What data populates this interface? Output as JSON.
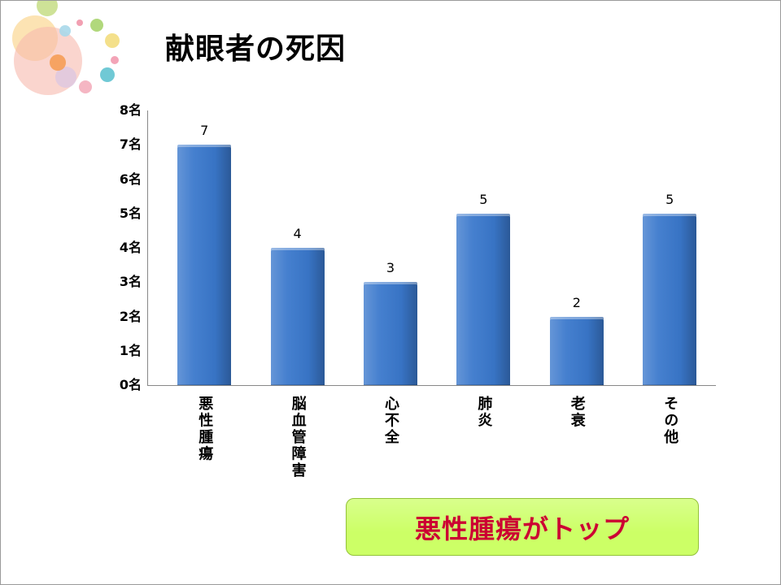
{
  "slide": {
    "title": "献眼者の死因",
    "callout": "悪性腫瘍がトップ"
  },
  "colors": {
    "bar": "#3a78cc",
    "callout_text": "#cc0033",
    "callout_background": "#ccff66"
  },
  "chart_data": {
    "type": "bar",
    "categories": [
      "悪性腫瘍",
      "脳血管障害",
      "心不全",
      "肺炎",
      "老衰",
      "その他"
    ],
    "values": [
      7,
      4,
      3,
      5,
      2,
      5
    ],
    "ylim": [
      0,
      8
    ],
    "yticks": [
      0,
      1,
      2,
      3,
      4,
      5,
      6,
      7,
      8
    ],
    "ytick_labels": [
      "0名",
      "1名",
      "2名",
      "3名",
      "4名",
      "5名",
      "6名",
      "7名",
      "8名"
    ],
    "show_data_labels": true,
    "grid": false,
    "legend": "none"
  }
}
